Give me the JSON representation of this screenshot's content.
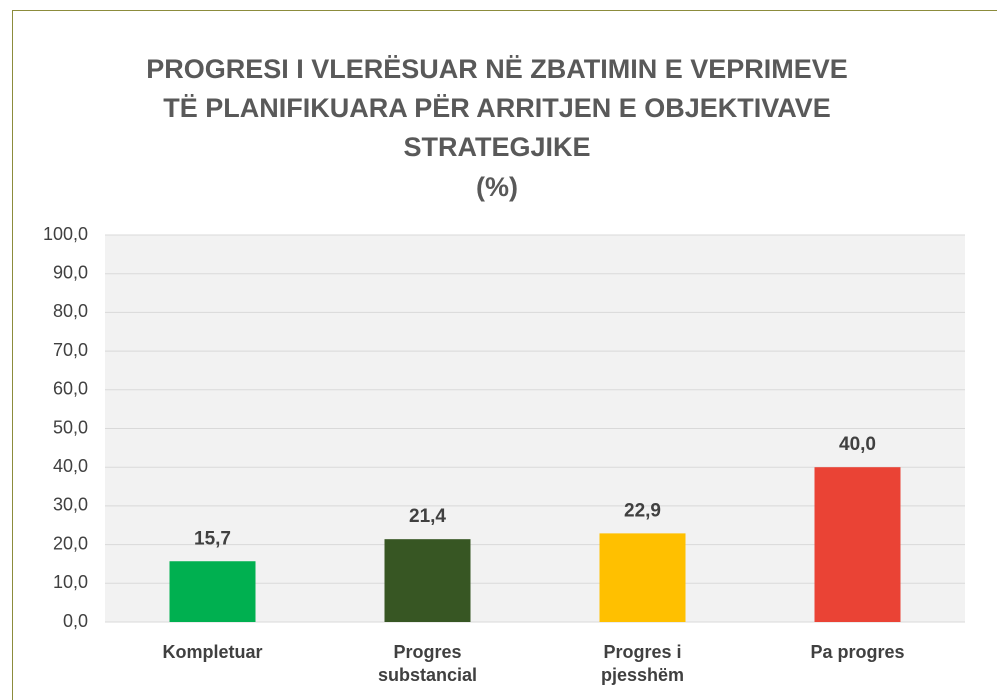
{
  "chart_data": {
    "type": "bar",
    "title": "PROGRESI I VLERËSUAR NË ZBATIMIN E VEPRIMEVE TË PLANIFIKUARA PËR ARRITJEN E OBJEKTIVAVE STRATEGJIKE",
    "subtitle": "(%)",
    "categories": [
      "Kompletuar",
      "Progres substancial",
      "Progres i pjesshëm",
      "Pa progres"
    ],
    "values": [
      15.7,
      21.4,
      22.9,
      40.0
    ],
    "value_labels": [
      "15,7",
      "21,4",
      "22,9",
      "40,0"
    ],
    "colors": [
      "#00b050",
      "#375623",
      "#ffc000",
      "#ea4335"
    ],
    "ylim": [
      0,
      100
    ],
    "yticks": [
      {
        "value": 0,
        "label": "0,0"
      },
      {
        "value": 10,
        "label": "10,0"
      },
      {
        "value": 20,
        "label": "20,0"
      },
      {
        "value": 30,
        "label": "30,0"
      },
      {
        "value": 40,
        "label": "40,0"
      },
      {
        "value": 50,
        "label": "50,0"
      },
      {
        "value": 60,
        "label": "60,0"
      },
      {
        "value": 70,
        "label": "70,0"
      },
      {
        "value": 80,
        "label": "80,0"
      },
      {
        "value": 90,
        "label": "90,0"
      },
      {
        "value": 100,
        "label": "100,0"
      }
    ],
    "grid": true
  }
}
